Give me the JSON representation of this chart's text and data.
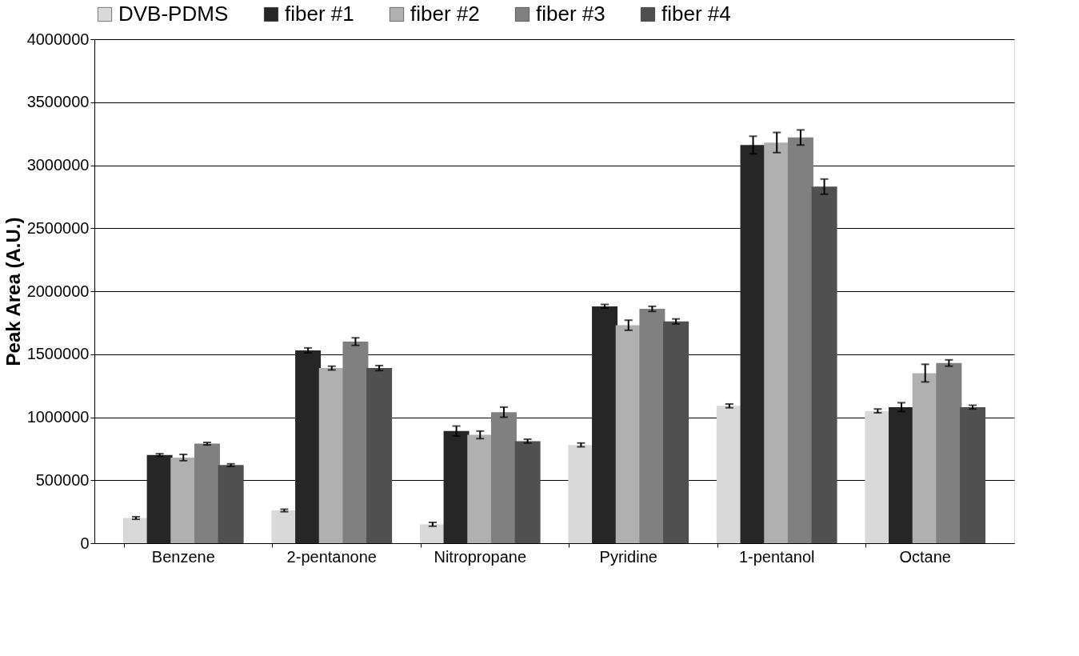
{
  "chart_data": {
    "type": "bar",
    "ylabel": "Peak Area (A.U.)",
    "categories": [
      "Benzene",
      "2-pentanone",
      "Nitropropane",
      "Pyridine",
      "1-pentanol",
      "Octane"
    ],
    "series": [
      {
        "name": "DVB-PDMS",
        "color": "#d9d9d9",
        "values": [
          200000,
          260000,
          150000,
          780000,
          1090000,
          1050000
        ],
        "errors": [
          10000,
          10000,
          15000,
          15000,
          15000,
          15000
        ]
      },
      {
        "name": "fiber #1",
        "color": "#262626",
        "values": [
          700000,
          1530000,
          890000,
          1880000,
          3160000,
          1080000
        ],
        "errors": [
          10000,
          20000,
          40000,
          15000,
          70000,
          35000
        ]
      },
      {
        "name": "fiber #2",
        "color": "#b0b0b0",
        "values": [
          680000,
          1390000,
          860000,
          1730000,
          3180000,
          1350000
        ],
        "errors": [
          25000,
          15000,
          30000,
          40000,
          80000,
          70000
        ]
      },
      {
        "name": "fiber #3",
        "color": "#808080",
        "values": [
          790000,
          1600000,
          1040000,
          1860000,
          3220000,
          1430000
        ],
        "errors": [
          10000,
          30000,
          40000,
          20000,
          60000,
          25000
        ]
      },
      {
        "name": "fiber #4",
        "color": "#505050",
        "values": [
          620000,
          1390000,
          810000,
          1760000,
          2830000,
          1080000
        ],
        "errors": [
          10000,
          20000,
          15000,
          20000,
          60000,
          15000
        ]
      }
    ],
    "ylim": [
      0,
      4000000
    ],
    "yticks": [
      0,
      500000,
      1000000,
      1500000,
      2000000,
      2500000,
      3000000,
      3500000,
      4000000
    ],
    "grid": "y",
    "legend": "top"
  }
}
